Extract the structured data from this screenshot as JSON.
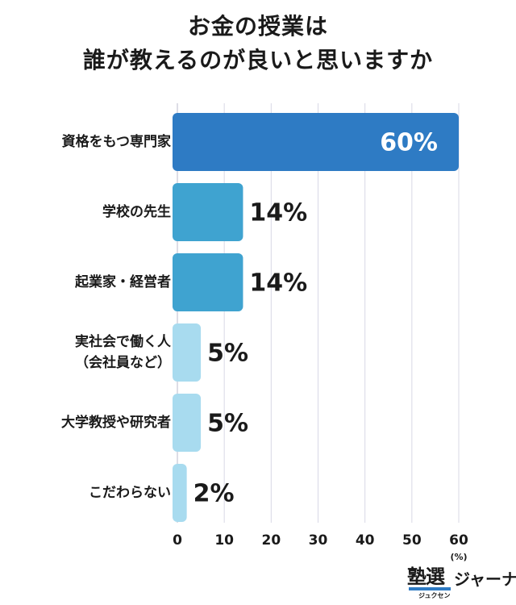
{
  "title_line1": "お金の授業は",
  "title_line2": "誰が教えるのが良いと思いますか",
  "logo": {
    "mark": "塾選",
    "kana": "ジュクセン",
    "text": "ジャーナル"
  },
  "chart_data": {
    "type": "bar",
    "orientation": "horizontal",
    "categories": [
      [
        "資格をもつ専門家"
      ],
      [
        "学校の先生"
      ],
      [
        "起業家・経営者"
      ],
      [
        "実社会で働く人",
        "（会社員など）"
      ],
      [
        "大学教授や研究者"
      ],
      [
        "こだわらない"
      ]
    ],
    "values": [
      60,
      14,
      14,
      5,
      5,
      2
    ],
    "value_labels": [
      "60%",
      "14%",
      "14%",
      "5%",
      "5%",
      "2%"
    ],
    "xlim": [
      0,
      60
    ],
    "ticks": [
      0,
      10,
      20,
      30,
      40,
      50,
      60
    ],
    "xunit": "(%)",
    "grid": true,
    "colors": {
      "top": "#2e7bc4",
      "high": "#3fa3d0",
      "low": "#a8dbef",
      "grid": "#d8d8e6",
      "value_inside": "#ffffff",
      "value_outside": "#1a1a1a"
    }
  }
}
